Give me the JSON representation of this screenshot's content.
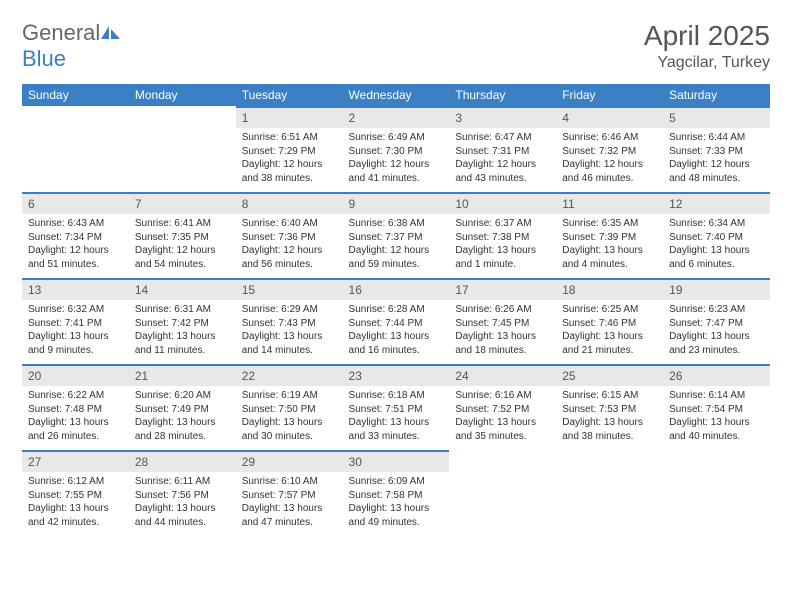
{
  "logo": {
    "text1": "General",
    "text2": "Blue"
  },
  "title": "April 2025",
  "location": "Yagcilar, Turkey",
  "weekdays": [
    "Sunday",
    "Monday",
    "Tuesday",
    "Wednesday",
    "Thursday",
    "Friday",
    "Saturday"
  ],
  "colors": {
    "header_bg": "#3b7fc4",
    "header_fg": "#ffffff",
    "daynum_bg": "#e8e8e8",
    "daynum_border": "#3b7fc4"
  },
  "weeks": [
    [
      {
        "empty": true
      },
      {
        "empty": true
      },
      {
        "num": "1",
        "sunrise": "Sunrise: 6:51 AM",
        "sunset": "Sunset: 7:29 PM",
        "daylight": "Daylight: 12 hours and 38 minutes."
      },
      {
        "num": "2",
        "sunrise": "Sunrise: 6:49 AM",
        "sunset": "Sunset: 7:30 PM",
        "daylight": "Daylight: 12 hours and 41 minutes."
      },
      {
        "num": "3",
        "sunrise": "Sunrise: 6:47 AM",
        "sunset": "Sunset: 7:31 PM",
        "daylight": "Daylight: 12 hours and 43 minutes."
      },
      {
        "num": "4",
        "sunrise": "Sunrise: 6:46 AM",
        "sunset": "Sunset: 7:32 PM",
        "daylight": "Daylight: 12 hours and 46 minutes."
      },
      {
        "num": "5",
        "sunrise": "Sunrise: 6:44 AM",
        "sunset": "Sunset: 7:33 PM",
        "daylight": "Daylight: 12 hours and 48 minutes."
      }
    ],
    [
      {
        "num": "6",
        "sunrise": "Sunrise: 6:43 AM",
        "sunset": "Sunset: 7:34 PM",
        "daylight": "Daylight: 12 hours and 51 minutes."
      },
      {
        "num": "7",
        "sunrise": "Sunrise: 6:41 AM",
        "sunset": "Sunset: 7:35 PM",
        "daylight": "Daylight: 12 hours and 54 minutes."
      },
      {
        "num": "8",
        "sunrise": "Sunrise: 6:40 AM",
        "sunset": "Sunset: 7:36 PM",
        "daylight": "Daylight: 12 hours and 56 minutes."
      },
      {
        "num": "9",
        "sunrise": "Sunrise: 6:38 AM",
        "sunset": "Sunset: 7:37 PM",
        "daylight": "Daylight: 12 hours and 59 minutes."
      },
      {
        "num": "10",
        "sunrise": "Sunrise: 6:37 AM",
        "sunset": "Sunset: 7:38 PM",
        "daylight": "Daylight: 13 hours and 1 minute."
      },
      {
        "num": "11",
        "sunrise": "Sunrise: 6:35 AM",
        "sunset": "Sunset: 7:39 PM",
        "daylight": "Daylight: 13 hours and 4 minutes."
      },
      {
        "num": "12",
        "sunrise": "Sunrise: 6:34 AM",
        "sunset": "Sunset: 7:40 PM",
        "daylight": "Daylight: 13 hours and 6 minutes."
      }
    ],
    [
      {
        "num": "13",
        "sunrise": "Sunrise: 6:32 AM",
        "sunset": "Sunset: 7:41 PM",
        "daylight": "Daylight: 13 hours and 9 minutes."
      },
      {
        "num": "14",
        "sunrise": "Sunrise: 6:31 AM",
        "sunset": "Sunset: 7:42 PM",
        "daylight": "Daylight: 13 hours and 11 minutes."
      },
      {
        "num": "15",
        "sunrise": "Sunrise: 6:29 AM",
        "sunset": "Sunset: 7:43 PM",
        "daylight": "Daylight: 13 hours and 14 minutes."
      },
      {
        "num": "16",
        "sunrise": "Sunrise: 6:28 AM",
        "sunset": "Sunset: 7:44 PM",
        "daylight": "Daylight: 13 hours and 16 minutes."
      },
      {
        "num": "17",
        "sunrise": "Sunrise: 6:26 AM",
        "sunset": "Sunset: 7:45 PM",
        "daylight": "Daylight: 13 hours and 18 minutes."
      },
      {
        "num": "18",
        "sunrise": "Sunrise: 6:25 AM",
        "sunset": "Sunset: 7:46 PM",
        "daylight": "Daylight: 13 hours and 21 minutes."
      },
      {
        "num": "19",
        "sunrise": "Sunrise: 6:23 AM",
        "sunset": "Sunset: 7:47 PM",
        "daylight": "Daylight: 13 hours and 23 minutes."
      }
    ],
    [
      {
        "num": "20",
        "sunrise": "Sunrise: 6:22 AM",
        "sunset": "Sunset: 7:48 PM",
        "daylight": "Daylight: 13 hours and 26 minutes."
      },
      {
        "num": "21",
        "sunrise": "Sunrise: 6:20 AM",
        "sunset": "Sunset: 7:49 PM",
        "daylight": "Daylight: 13 hours and 28 minutes."
      },
      {
        "num": "22",
        "sunrise": "Sunrise: 6:19 AM",
        "sunset": "Sunset: 7:50 PM",
        "daylight": "Daylight: 13 hours and 30 minutes."
      },
      {
        "num": "23",
        "sunrise": "Sunrise: 6:18 AM",
        "sunset": "Sunset: 7:51 PM",
        "daylight": "Daylight: 13 hours and 33 minutes."
      },
      {
        "num": "24",
        "sunrise": "Sunrise: 6:16 AM",
        "sunset": "Sunset: 7:52 PM",
        "daylight": "Daylight: 13 hours and 35 minutes."
      },
      {
        "num": "25",
        "sunrise": "Sunrise: 6:15 AM",
        "sunset": "Sunset: 7:53 PM",
        "daylight": "Daylight: 13 hours and 38 minutes."
      },
      {
        "num": "26",
        "sunrise": "Sunrise: 6:14 AM",
        "sunset": "Sunset: 7:54 PM",
        "daylight": "Daylight: 13 hours and 40 minutes."
      }
    ],
    [
      {
        "num": "27",
        "sunrise": "Sunrise: 6:12 AM",
        "sunset": "Sunset: 7:55 PM",
        "daylight": "Daylight: 13 hours and 42 minutes."
      },
      {
        "num": "28",
        "sunrise": "Sunrise: 6:11 AM",
        "sunset": "Sunset: 7:56 PM",
        "daylight": "Daylight: 13 hours and 44 minutes."
      },
      {
        "num": "29",
        "sunrise": "Sunrise: 6:10 AM",
        "sunset": "Sunset: 7:57 PM",
        "daylight": "Daylight: 13 hours and 47 minutes."
      },
      {
        "num": "30",
        "sunrise": "Sunrise: 6:09 AM",
        "sunset": "Sunset: 7:58 PM",
        "daylight": "Daylight: 13 hours and 49 minutes."
      },
      {
        "empty": true
      },
      {
        "empty": true
      },
      {
        "empty": true
      }
    ]
  ]
}
